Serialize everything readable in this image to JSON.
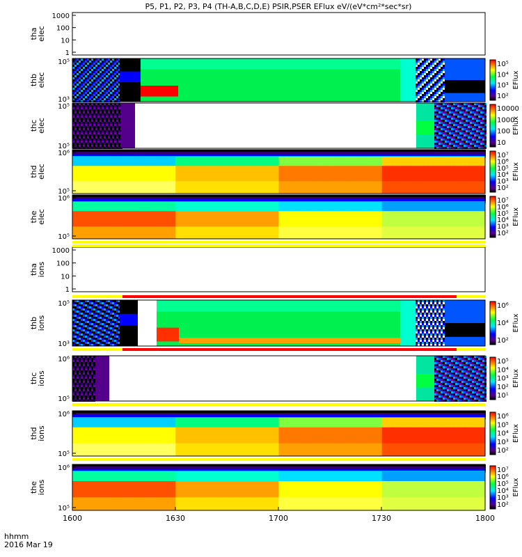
{
  "chart_data": {
    "type": "heatmap",
    "title": "P5, P1, P2, P3, P4 (TH-A,B,C,D,E) PSIR,PSER EFlux eV/(eV*cm²*sec*sr)",
    "x_ticks": [
      "1600",
      "1630",
      "1700",
      "1730",
      "1800"
    ],
    "x_range": [
      "16:00",
      "18:00"
    ],
    "footer_label": "hhmm",
    "footer_date": "2016 Mar 19",
    "panels": [
      {
        "ylabel": [
          "tha",
          "elec"
        ],
        "yticks": [
          "1000",
          "100",
          "10",
          "1"
        ],
        "colorbar": null,
        "cbar_ticks": [],
        "pattern": "empty"
      },
      {
        "ylabel": [
          "thb",
          "elec"
        ],
        "yticks": [
          "10⁵",
          "10³"
        ],
        "colorbar": "EFlux",
        "cbar_ticks": [
          "10⁵",
          "10⁴",
          "10³",
          "10²"
        ],
        "pattern": "thb"
      },
      {
        "ylabel": [
          "thc",
          "elec"
        ],
        "yticks": [
          "10⁵",
          "10⁵"
        ],
        "colorbar": "EFlux",
        "cbar_ticks": [
          "10000",
          "1000",
          "100",
          "10"
        ],
        "pattern": "thc"
      },
      {
        "ylabel": [
          "thd",
          "elec"
        ],
        "yticks": [
          "10⁶",
          "10⁵"
        ],
        "colorbar": "EFlux",
        "cbar_ticks": [
          "10⁷",
          "10⁶",
          "10⁵",
          "10⁴",
          "10³",
          "10²"
        ],
        "pattern": "thd"
      },
      {
        "ylabel": [
          "the",
          "elec"
        ],
        "yticks": [
          "10⁶",
          "10⁵"
        ],
        "colorbar": "EFlux",
        "cbar_ticks": [
          "10⁷",
          "10⁶",
          "10⁵",
          "10⁴",
          "10³",
          "10²"
        ],
        "pattern": "the"
      },
      {
        "ylabel": [
          "tha",
          "ions"
        ],
        "yticks": [
          "1000",
          "100",
          "10",
          "1"
        ],
        "colorbar": null,
        "cbar_ticks": [],
        "pattern": "empty"
      },
      {
        "ylabel": [
          "thb",
          "ions"
        ],
        "yticks": [
          "10⁵",
          "10³"
        ],
        "colorbar": "EFlux",
        "cbar_ticks": [
          "10⁶",
          "10⁴",
          "10²"
        ],
        "pattern": "thbi"
      },
      {
        "ylabel": [
          "thc",
          "ions"
        ],
        "yticks": [
          "10⁶",
          "10⁵"
        ],
        "colorbar": "EFlux",
        "cbar_ticks": [
          "10⁵",
          "10⁴",
          "10³",
          "10²",
          "10¹"
        ],
        "pattern": "thci"
      },
      {
        "ylabel": [
          "thd",
          "ions"
        ],
        "yticks": [
          "10⁶",
          "10⁵"
        ],
        "colorbar": "EFlux",
        "cbar_ticks": [
          "10⁶",
          "10⁵",
          "10⁴",
          "10³",
          "10²"
        ],
        "pattern": "thdi"
      },
      {
        "ylabel": [
          "the",
          "ions"
        ],
        "yticks": [
          "10⁶",
          "10⁵"
        ],
        "colorbar": "EFlux",
        "cbar_ticks": [
          "10⁷",
          "10⁶",
          "10⁵",
          "10⁴",
          "10³",
          "10²"
        ],
        "pattern": "thei"
      }
    ]
  }
}
